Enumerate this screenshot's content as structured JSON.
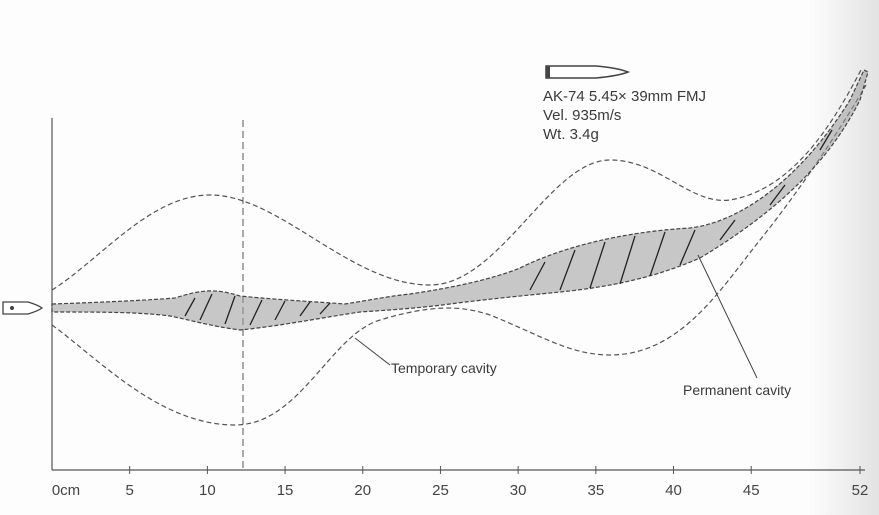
{
  "bullet_info": {
    "name": "AK-74 5.45× 39mm FMJ",
    "velocity": "Vel. 935m/s",
    "weight": "Wt. 3.4g"
  },
  "labels": {
    "temporary": "Temporary cavity",
    "permanent": "Permanent cavity"
  },
  "axis": {
    "ticks": [
      "0cm",
      "5",
      "10",
      "15",
      "20",
      "25",
      "30",
      "35",
      "40",
      "45",
      "52"
    ],
    "tick_values": [
      0,
      5,
      10,
      15,
      20,
      25,
      30,
      35,
      40,
      45,
      52
    ]
  }
}
